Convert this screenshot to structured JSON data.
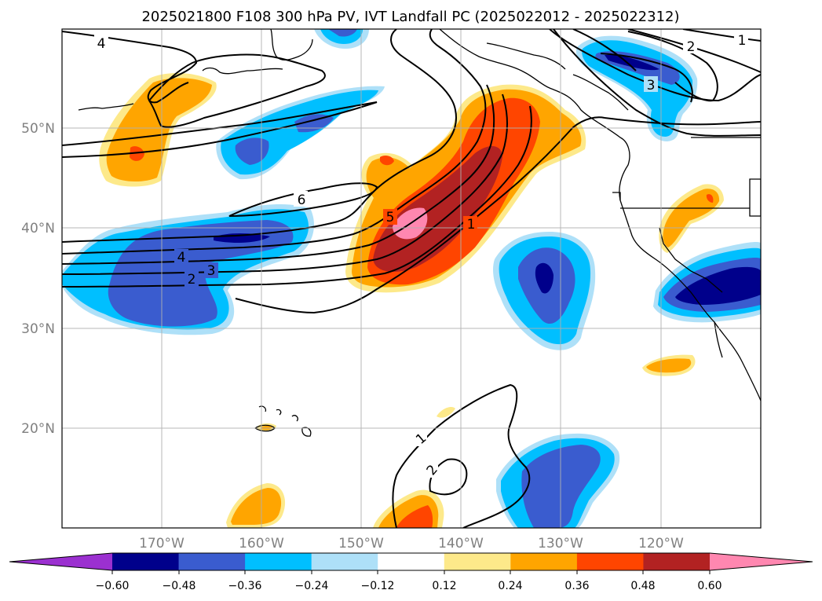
{
  "title": "2025021800 F108 300 hPa PV, IVT Landfall PC (2025022012 - 2025022312)",
  "map": {
    "lon_range": [
      -180,
      -110
    ],
    "lat_range": [
      10,
      60
    ],
    "lat_labels": [
      "50°N",
      "40°N",
      "30°N",
      "20°N"
    ],
    "lon_labels": [
      "170°W",
      "160°W",
      "150°W",
      "140°W",
      "130°W",
      "120°W"
    ],
    "gridlines": true
  },
  "contour_labels": [
    "4",
    "2",
    "1",
    "3",
    "6",
    "5",
    "4",
    "3",
    "2",
    "1",
    "1",
    "2"
  ],
  "colorbar": {
    "ticks": [
      "−0.60",
      "−0.48",
      "−0.36",
      "−0.24",
      "−0.12",
      "0.12",
      "0.24",
      "0.36",
      "0.48",
      "0.60"
    ],
    "colors": [
      "#9b30d0",
      "#00008b",
      "#3a5ccf",
      "#00bfff",
      "#aee0f8",
      "#ffffff",
      "#fde98a",
      "#ffa500",
      "#ff4500",
      "#b22222",
      "#ff87b0"
    ],
    "extend": "both"
  }
}
